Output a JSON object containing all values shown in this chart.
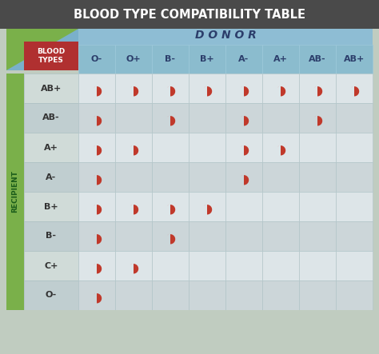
{
  "title": "BLOOD TYPE COMPATIBILITY TABLE",
  "title_color": "#ffffff",
  "donor_label": "D O N O R",
  "recipient_label": "RECIPIENT",
  "blood_types_label": "BLOOD\nTYPES",
  "donor_columns": [
    "O-",
    "O+",
    "B-",
    "B+",
    "A-",
    "A+",
    "AB-",
    "AB+"
  ],
  "recipient_rows": [
    "AB+",
    "AB-",
    "A+",
    "A-",
    "B+",
    "B-",
    "C+",
    "O-"
  ],
  "compatibility": [
    [
      1,
      1,
      1,
      1,
      1,
      1,
      1,
      1
    ],
    [
      1,
      0,
      1,
      0,
      1,
      0,
      1,
      0
    ],
    [
      1,
      1,
      0,
      0,
      1,
      1,
      0,
      0
    ],
    [
      1,
      0,
      0,
      0,
      1,
      0,
      0,
      0
    ],
    [
      1,
      1,
      1,
      1,
      0,
      0,
      0,
      0
    ],
    [
      1,
      0,
      1,
      0,
      0,
      0,
      0,
      0
    ],
    [
      1,
      1,
      0,
      0,
      0,
      0,
      0,
      0
    ],
    [
      1,
      0,
      0,
      0,
      0,
      0,
      0,
      0
    ]
  ],
  "header_text": "#2c3e6b",
  "blood_type_header_bg": "#b03030",
  "blood_type_header_text": "#ffffff",
  "drop_color": "#c0392b",
  "outer_bg": "#c0ccc0",
  "title_bar_color": "#4a4a4a",
  "blue_header_color": "#7ab0cb",
  "green_bar_color": "#7ab04a",
  "cell_bg_even": "#dde5e8",
  "cell_bg_odd": "#ccd6d9",
  "row_label_bg_even": "#d0dbd8",
  "row_label_bg_odd": "#c0ced0"
}
